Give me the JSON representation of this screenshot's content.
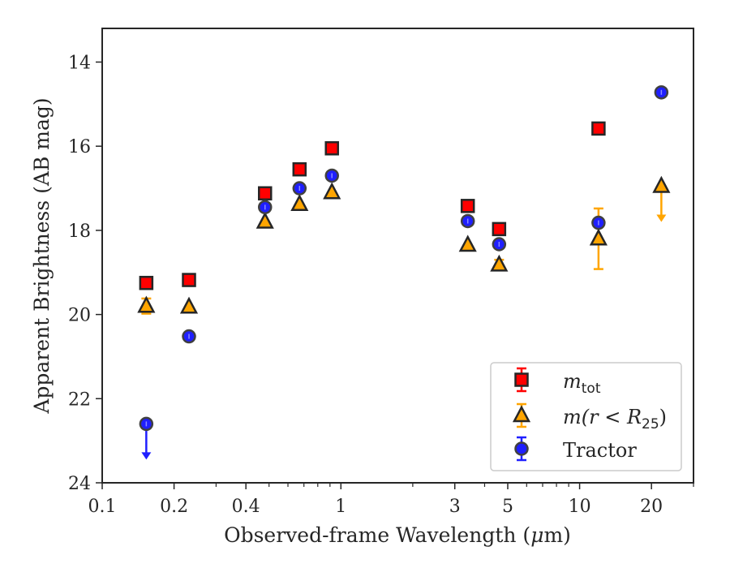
{
  "chart_data": {
    "type": "scatter",
    "title": "",
    "xlabel": "Observed-frame Wavelength (μm)",
    "xlabel_prefix": "Observed-frame Wavelength (",
    "xlabel_mu": "μ",
    "xlabel_suffix": "m)",
    "ylabel": "Apparent Brightness (AB mag)",
    "xscale": "log",
    "xlim": [
      0.1,
      30
    ],
    "ylim": [
      24.0,
      13.2
    ],
    "y_inverted": true,
    "grid": false,
    "legend_position": "lower-right",
    "x_ticks": [
      {
        "value": 0.1,
        "label": "0.1"
      },
      {
        "value": 0.2,
        "label": "0.2"
      },
      {
        "value": 0.4,
        "label": "0.4"
      },
      {
        "value": 1,
        "label": "1"
      },
      {
        "value": 3,
        "label": "3"
      },
      {
        "value": 5,
        "label": "5"
      },
      {
        "value": 10,
        "label": "10"
      },
      {
        "value": 20,
        "label": "20"
      }
    ],
    "y_ticks": [
      {
        "value": 14,
        "label": "14"
      },
      {
        "value": 16,
        "label": "16"
      },
      {
        "value": 18,
        "label": "18"
      },
      {
        "value": 20,
        "label": "20"
      },
      {
        "value": 22,
        "label": "22"
      },
      {
        "value": 24,
        "label": "24"
      }
    ],
    "series": [
      {
        "name": "m_tot",
        "legend_label": "m",
        "legend_sub": "tot",
        "marker": "square",
        "color": "#ff0000",
        "edge_color": "#262626",
        "points": [
          {
            "x": 0.153,
            "y": 19.25
          },
          {
            "x": 0.231,
            "y": 19.18
          },
          {
            "x": 0.481,
            "y": 17.12
          },
          {
            "x": 0.671,
            "y": 16.55
          },
          {
            "x": 0.917,
            "y": 16.05
          },
          {
            "x": 3.4,
            "y": 17.42
          },
          {
            "x": 4.6,
            "y": 17.97
          },
          {
            "x": 12.0,
            "y": 15.58
          }
        ]
      },
      {
        "name": "m(r<R_25)",
        "legend_label": "m(r < R",
        "legend_sub": "25",
        "legend_suffix": ")",
        "marker": "triangle",
        "color": "#ffa500",
        "edge_color": "#262626",
        "points": [
          {
            "x": 0.153,
            "y": 19.8,
            "err": 0.18
          },
          {
            "x": 0.231,
            "y": 19.82
          },
          {
            "x": 0.481,
            "y": 17.8
          },
          {
            "x": 0.671,
            "y": 17.38
          },
          {
            "x": 0.917,
            "y": 17.1
          },
          {
            "x": 3.4,
            "y": 18.35
          },
          {
            "x": 4.6,
            "y": 18.82,
            "err": 0.12
          },
          {
            "x": 12.0,
            "y": 18.2,
            "err": 0.72
          },
          {
            "x": 22.0,
            "y": 16.95,
            "upper_limit": true
          }
        ]
      },
      {
        "name": "Tractor",
        "legend_label": "Tractor",
        "marker": "circle",
        "color": "#1f1fff",
        "edge_color": "#404040",
        "points": [
          {
            "x": 0.153,
            "y": 22.6,
            "upper_limit": true
          },
          {
            "x": 0.231,
            "y": 20.52
          },
          {
            "x": 0.481,
            "y": 17.45
          },
          {
            "x": 0.671,
            "y": 17.0
          },
          {
            "x": 0.917,
            "y": 16.7
          },
          {
            "x": 3.4,
            "y": 17.78
          },
          {
            "x": 4.6,
            "y": 18.33
          },
          {
            "x": 12.0,
            "y": 17.82
          },
          {
            "x": 22.0,
            "y": 14.72
          }
        ]
      }
    ]
  }
}
